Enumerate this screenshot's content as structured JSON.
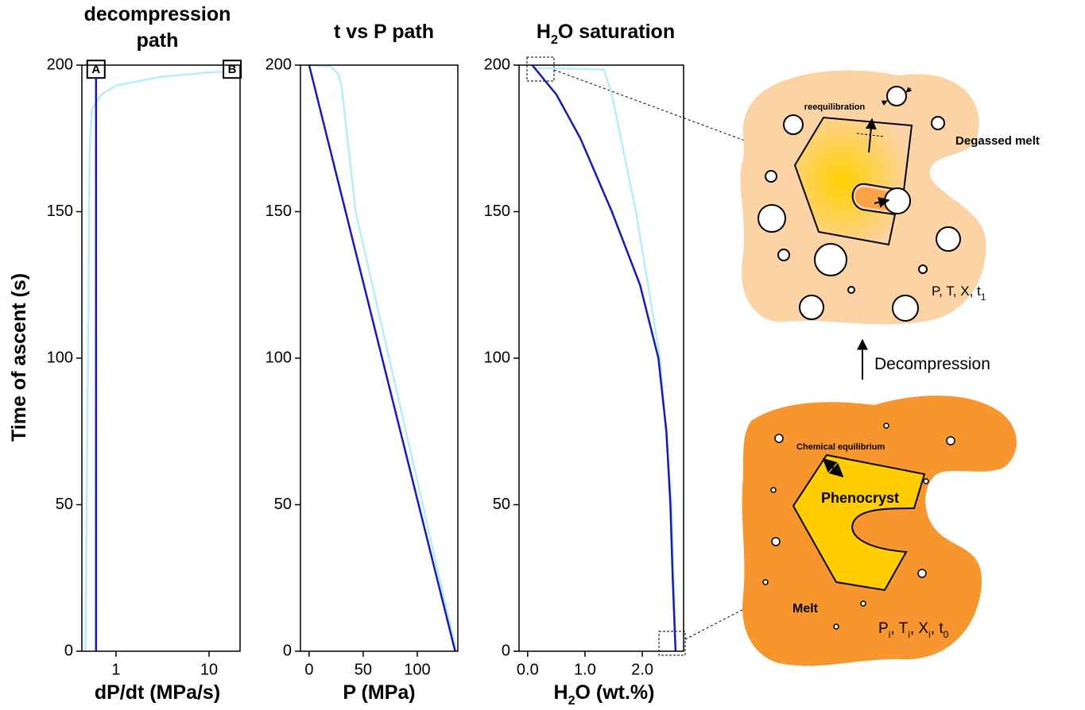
{
  "chart_data": [
    {
      "type": "line",
      "title": [
        "decompression",
        "path"
      ],
      "xlabel": "dP/dt (MPa/s)",
      "ylabel": "Time of ascent (s)",
      "xlog": true,
      "xlim": [
        0.43,
        21.5
      ],
      "xticks": [
        1,
        10
      ],
      "ylim": [
        0,
        200
      ],
      "yticks": [
        0,
        50,
        100,
        150,
        200
      ],
      "series": [
        {
          "color": "#b7eef5",
          "x": [
            0.47,
            0.5,
            0.52,
            0.55,
            0.7,
            1,
            3,
            10,
            20
          ],
          "values": [
            0,
            100,
            170,
            185,
            190,
            193,
            196,
            197.5,
            198
          ]
        },
        {
          "color": "#1a1ab0",
          "x": [
            0.61,
            0.61
          ],
          "values": [
            0,
            200
          ]
        }
      ],
      "annotations": [
        {
          "text": "A",
          "x": 0.61,
          "y": 198.6
        },
        {
          "text": "B",
          "x": 17.7,
          "y": 198.6
        }
      ]
    },
    {
      "type": "line",
      "title": "t vs P path",
      "xlabel": "P (MPa)",
      "xlim": [
        -8,
        137.5
      ],
      "xticks": [
        0,
        50,
        100
      ],
      "ylim": [
        0,
        200
      ],
      "yticks": [
        0,
        50,
        100,
        150,
        200
      ],
      "series": [
        {
          "color": "#b7eef5",
          "x": [
            0,
            20,
            27,
            30,
            43,
            74,
            105,
            136
          ],
          "values": [
            200,
            199.5,
            197,
            193,
            150,
            100,
            50,
            0
          ]
        },
        {
          "color": "#1a1ab0",
          "x": [
            0,
            135
          ],
          "values": [
            200,
            0
          ]
        }
      ]
    },
    {
      "type": "line",
      "title": [
        "H",
        "2",
        "O saturation"
      ],
      "xlabel": [
        "H",
        "2",
        "O (wt.%)"
      ],
      "xlim": [
        -0.15,
        2.72
      ],
      "xticks": [
        {
          "value": 0,
          "label": "0.0"
        },
        {
          "value": 1,
          "label": "1.0"
        },
        {
          "value": 2,
          "label": "2.0"
        }
      ],
      "ylim": [
        0,
        200
      ],
      "yticks": [
        0,
        50,
        100,
        150,
        200
      ],
      "series": [
        {
          "color": "#b7eef5",
          "x": [
            0.1,
            0.6,
            1.33,
            1.47,
            1.89,
            2.31,
            2.51,
            2.58
          ],
          "values": [
            199,
            198.8,
            198.5,
            190,
            150,
            100,
            50,
            0
          ]
        },
        {
          "color": "#1a1ab0",
          "x": [
            0.08,
            0.5,
            0.92,
            1.47,
            1.96,
            2.28,
            2.42,
            2.49,
            2.53,
            2.58
          ],
          "values": [
            200,
            190,
            175,
            150,
            125,
            100,
            75,
            50,
            25,
            0
          ]
        }
      ]
    }
  ],
  "diagram": {
    "top": {
      "process": "reequilibration",
      "label": "Degassed melt",
      "conditions": [
        "P, T, X, t",
        "1"
      ]
    },
    "arrow": "Decompression",
    "bottom": {
      "process": "Chemical equilibrium",
      "crystal": "Phenocryst",
      "label": "Melt",
      "conditions": [
        "P",
        "i",
        ", T",
        "i",
        ", X",
        "i",
        ", t",
        "0"
      ]
    }
  }
}
